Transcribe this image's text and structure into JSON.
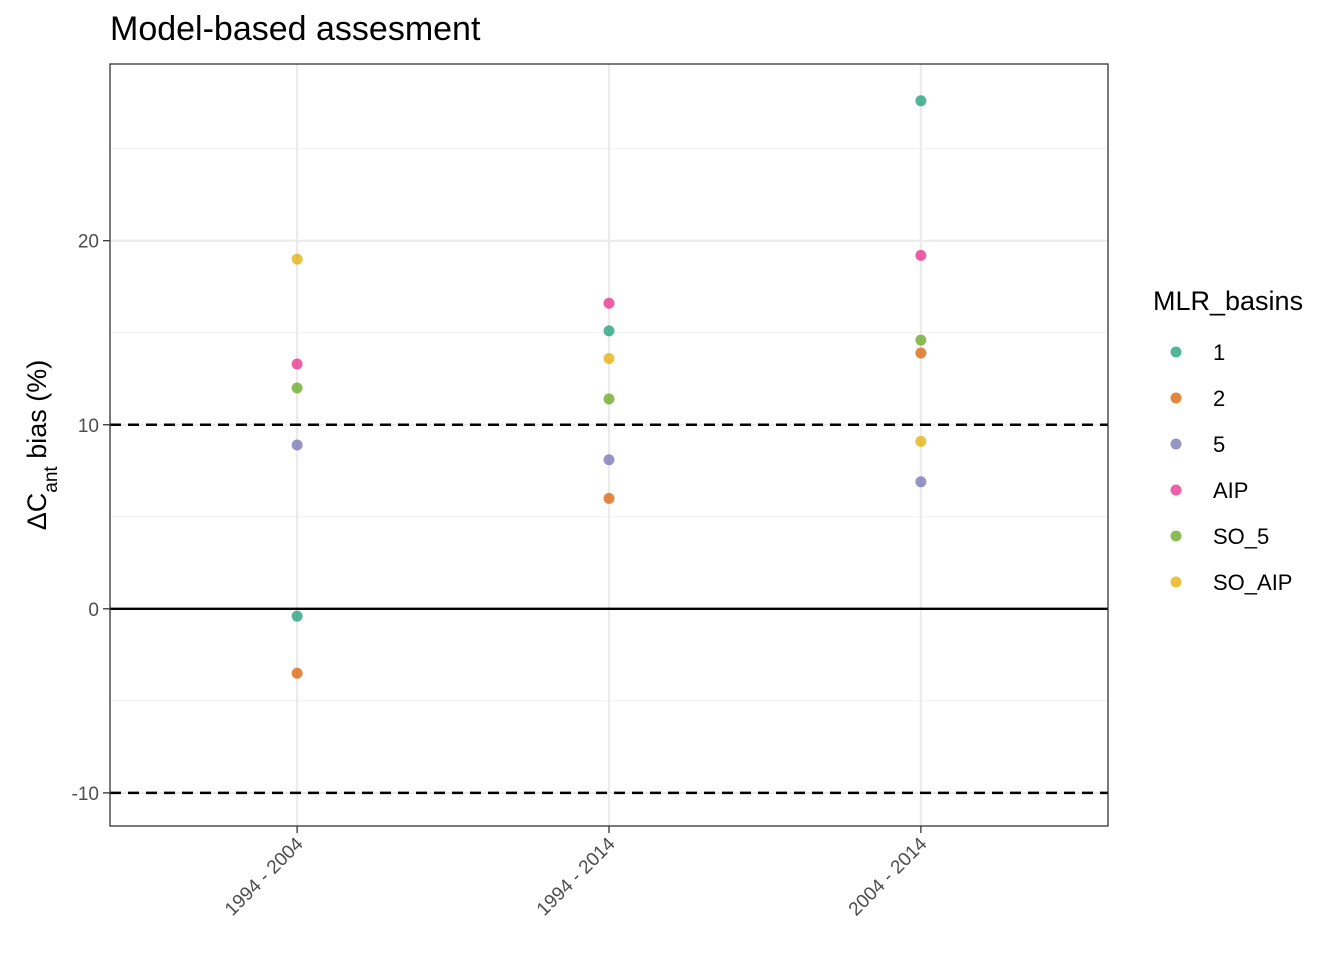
{
  "chart_data": {
    "type": "scatter",
    "title": "Model-based assesment",
    "xlabel": "",
    "ylabel": {
      "prefix": "ΔC",
      "subscript": "ant",
      "suffix": " bias (%)"
    },
    "categories": [
      "1994 - 2004",
      "1994 - 2014",
      "2004 - 2014"
    ],
    "yticks": [
      -10,
      0,
      10,
      20
    ],
    "ylim": [
      -11.8,
      29.6
    ],
    "grid": true,
    "reference_lines": [
      {
        "y": 0,
        "style": "solid"
      },
      {
        "y": 10,
        "style": "dashed"
      },
      {
        "y": -10,
        "style": "dashed"
      }
    ],
    "legend": {
      "title": "MLR_basins",
      "position": "right"
    },
    "series": [
      {
        "name": "1",
        "color": "#1b9e77",
        "values": [
          -0.4,
          15.1,
          27.6
        ]
      },
      {
        "name": "2",
        "color": "#d95f02",
        "values": [
          -3.5,
          6.0,
          13.9
        ]
      },
      {
        "name": "5",
        "color": "#7570b3",
        "values": [
          8.9,
          8.1,
          6.9
        ]
      },
      {
        "name": "AIP",
        "color": "#e7298a",
        "values": [
          13.3,
          16.6,
          19.2
        ]
      },
      {
        "name": "SO_5",
        "color": "#66a61e",
        "values": [
          12.0,
          11.4,
          14.6
        ]
      },
      {
        "name": "SO_AIP",
        "color": "#e6ab02",
        "values": [
          19.0,
          13.6,
          9.1
        ]
      }
    ]
  }
}
